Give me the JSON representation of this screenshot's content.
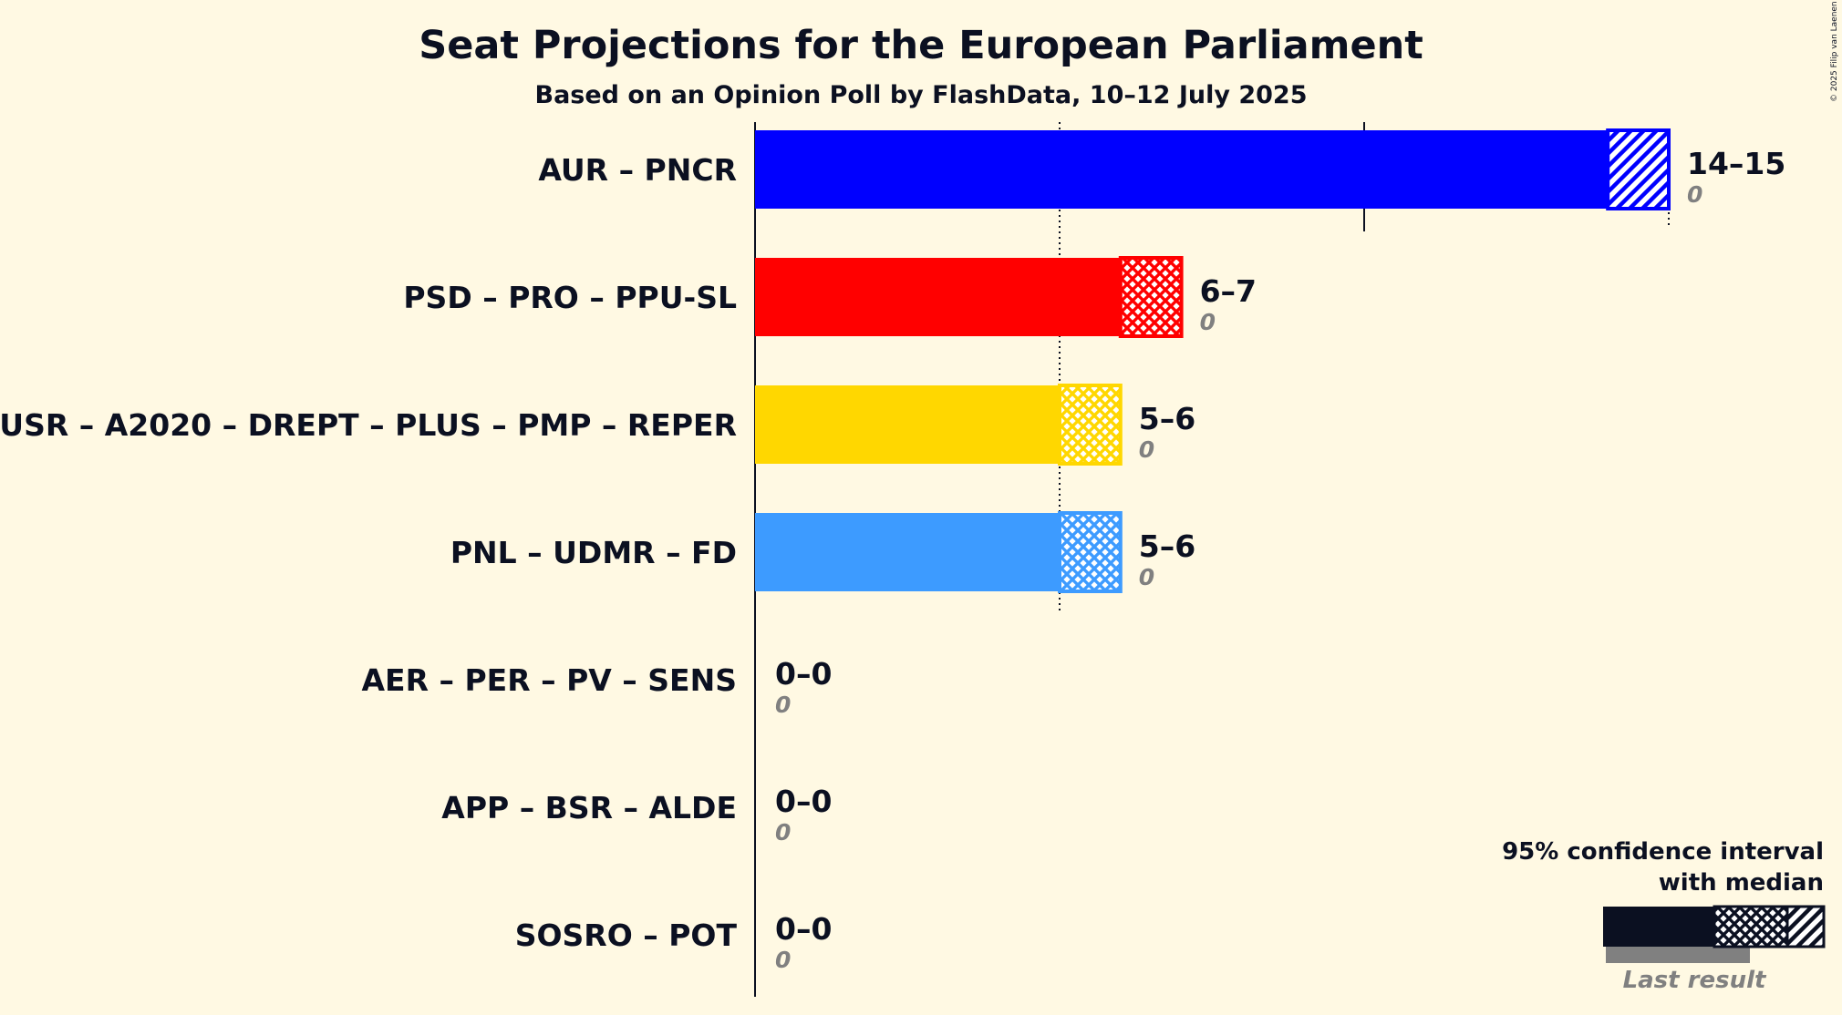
{
  "chart_data": {
    "type": "bar",
    "orientation": "horizontal",
    "title": "Seat Projections for the European Parliament",
    "subtitle": "Based on an Opinion Poll by FlashData, 10–12 July 2025",
    "x_range": [
      0,
      15
    ],
    "gridlines": [
      5,
      10
    ],
    "parties": [
      {
        "name": "AUR – PNCR",
        "color": "#0000ff",
        "low": 14,
        "median": 14,
        "high": 15,
        "range_label": "14–15",
        "last_result": 0,
        "last_label": "0",
        "pattern": "diagonal"
      },
      {
        "name": "PSD – PRO – PPU-SL",
        "color": "#ff0000",
        "low": 6,
        "median": 7,
        "high": 7,
        "range_label": "6–7",
        "last_result": 0,
        "last_label": "0",
        "pattern": "crosshatch"
      },
      {
        "name": "USR – A2020 – DREPT – PLUS – PMP – REPER",
        "color": "#ffd700",
        "low": 5,
        "median": 6,
        "high": 6,
        "range_label": "5–6",
        "last_result": 0,
        "last_label": "0",
        "pattern": "crosshatch"
      },
      {
        "name": "PNL – UDMR – FD",
        "color": "#3d9bff",
        "low": 5,
        "median": 6,
        "high": 6,
        "range_label": "5–6",
        "last_result": 0,
        "last_label": "0",
        "pattern": "crosshatch"
      },
      {
        "name": "AER – PER – PV – SENS",
        "color": "#888888",
        "low": 0,
        "median": 0,
        "high": 0,
        "range_label": "0–0",
        "last_result": 0,
        "last_label": "0",
        "pattern": "none"
      },
      {
        "name": "APP – BSR – ALDE",
        "color": "#888888",
        "low": 0,
        "median": 0,
        "high": 0,
        "range_label": "0–0",
        "last_result": 0,
        "last_label": "0",
        "pattern": "none"
      },
      {
        "name": "SOSRO – POT",
        "color": "#888888",
        "low": 0,
        "median": 0,
        "high": 0,
        "range_label": "0–0",
        "last_result": 0,
        "last_label": "0",
        "pattern": "none"
      }
    ],
    "legend": {
      "line1": "95% confidence interval",
      "line2": "with median",
      "last_result_label": "Last result",
      "placement": "bottom-right"
    },
    "copyright": "© 2025 Filip van Laenen"
  },
  "colors": {
    "background": "#fff9e3",
    "text": "#0b1021",
    "last_result": "#808080"
  }
}
